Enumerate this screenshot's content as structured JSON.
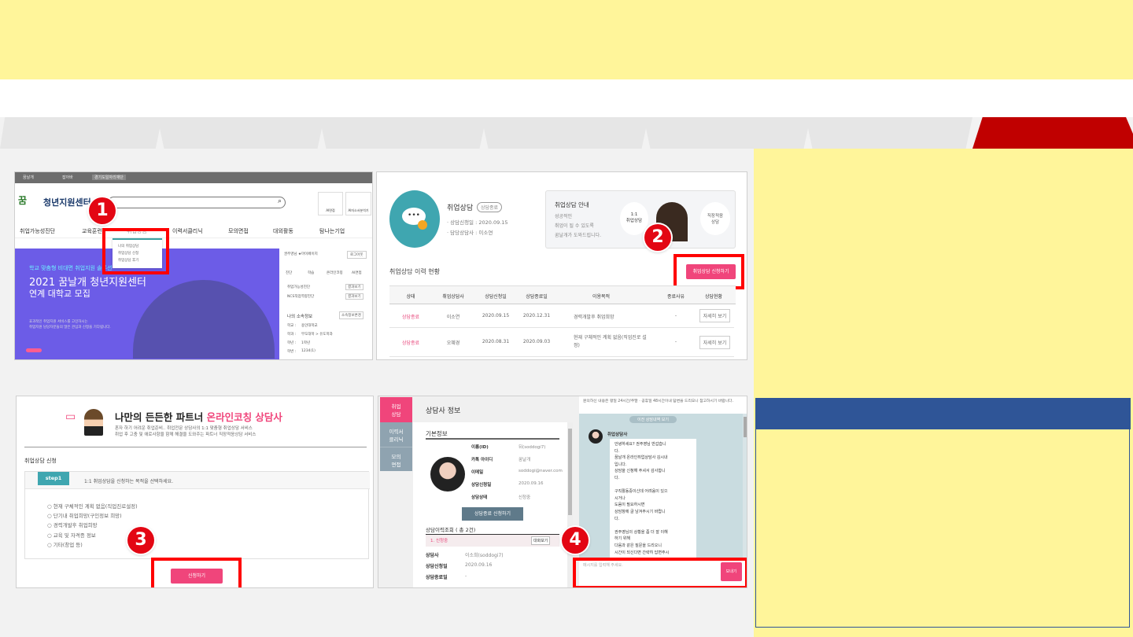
{
  "colors": {
    "accent_red": "#c00000",
    "highlight_yellow": "#fff59a",
    "panel_blue": "#2f5597",
    "pink": "#f0457b",
    "teal": "#3fa6b0"
  },
  "tabs": [
    {
      "label": ""
    },
    {
      "label": ""
    },
    {
      "label": ""
    },
    {
      "label": ""
    },
    {
      "label": ""
    },
    {
      "label": ""
    },
    {
      "label": "",
      "active": true
    }
  ],
  "badges": [
    "1",
    "2",
    "3",
    "4"
  ],
  "shot1": {
    "topbar": [
      "꿈날개",
      "잡아바",
      "경기도일자리재단"
    ],
    "logo": "청년지원센터",
    "search_placeholder": "",
    "quick": [
      "AI면접",
      "AI자소서분석기"
    ],
    "nav": [
      "취업가능성진단",
      "교육훈련",
      "취업상담",
      "이력서클리닉",
      "모의면접",
      "대외활동",
      "탐나는기업"
    ],
    "dropdown": [
      "나의 취업상담",
      "취업상담 신청",
      "취업상담 후기"
    ],
    "banner": {
      "kicker": "학교 맞춤형 비대면 취업지원 솔루션",
      "title1": "2021 꿈날개 청년지원센터",
      "title2": "연계 대학교 모집",
      "desc1": "효과적인 취업지원 서비스를 고민하시는",
      "desc2": "취업지원 담당자분들의 많은 관심과 신청을 기다립니다."
    },
    "side": {
      "user": "권주영님 ★마이페이지",
      "logout": "로그아웃",
      "icons": [
        "진단",
        "학습",
        "온라인코칭",
        "AI면접"
      ],
      "items": [
        {
          "label": "취업가능성진단",
          "btn": "결과보기"
        },
        {
          "label": "NCS직업역량진단",
          "btn": "결과보기"
        }
      ],
      "info_title": "나의 소속정보",
      "info_btn": "소속정보변경",
      "info": [
        {
          "k": "학교 :",
          "v": "용인대학교"
        },
        {
          "k": "학과 :",
          "v": "무도대학 > 유도학과"
        },
        {
          "k": "학년 :",
          "v": "1학년"
        },
        {
          "k": "학번 :",
          "v": "1234(1)"
        }
      ]
    }
  },
  "shot2": {
    "title": "취업상담",
    "status": "상담종료",
    "apply_date": "· 상담신청일 : 2020.09.15",
    "counselor": "· 담당상담사 : 이소연",
    "guide": {
      "title": "취업상담 안내",
      "lines": [
        "성공적인",
        "취업이 될 수 있도록",
        "꿈날개가 도와드립니다."
      ],
      "left_bubble": "1:1\n취업상담",
      "right_bubble": "직장적응\n상담"
    },
    "history_title": "취업상담 이력 현황",
    "apply_button": "취업상담 신청하기",
    "columns": [
      "상태",
      "취업상담사",
      "상담신청일",
      "상담종료일",
      "이용목적",
      "종료사유",
      "상담현황"
    ],
    "rows": [
      {
        "status": "상담종료",
        "counselor": "이소연",
        "start": "2020.09.15",
        "end": "2020.12.31",
        "purpose": "경력개발후 취업희망",
        "reason": "-",
        "action": "자세히 보기"
      },
      {
        "status": "상담종료",
        "counselor": "오혜경",
        "start": "2020.08.31",
        "end": "2020.09.03",
        "purpose": "현재 구체적인 계획 없음(직업진로 설정)",
        "reason": "-",
        "action": "자세히 보기"
      }
    ]
  },
  "shot3": {
    "title_black": "나만의 든든한 파트너 ",
    "title_pink": "온라인코칭 상담사",
    "sub1": "혼자 하기 어려운 취업준비.. 취업전문 상담사의 1:1 맞춤형 취업상담 서비스",
    "sub2": "취업 후 고충 및 애로사항을 함께 해결을 도와주는 파트너 직장적응상담 서비스",
    "section": "취업상담 신청",
    "step": "step1",
    "step_text": "1:1 취업상담을 신청하는 목적을 선택하세요.",
    "options": [
      "현재 구체적인 계획 없음(직업진로설정)",
      "단기내 취업희망(구인정보 희망)",
      "경력개발후 취업희망",
      "교육 및 자격증 정보",
      "기타(창업 등)"
    ],
    "submit": "신청하기"
  },
  "shot4": {
    "side_tabs": [
      "취업\n상담",
      "이력서\n클리닉",
      "모의\n면접"
    ],
    "header": "상담사 정보",
    "basic": "기본정보",
    "fields": [
      {
        "k": "이름(ID)",
        "v": "뒤(soddogi7)"
      },
      {
        "k": "카톡 아이디",
        "v": "꿈날개"
      },
      {
        "k": "이메일",
        "v": "soddogi@naver.com"
      },
      {
        "k": "상담신청일",
        "v": "2020.09.16"
      },
      {
        "k": "상담상태",
        "v": "신청중"
      }
    ],
    "end_button": "상담종료 신청하기",
    "history_title": "상담이력조회 ( 총 2건)",
    "history_item": "1. 신청중",
    "history_btn": "대화보기",
    "history_fields": [
      {
        "k": "상담사",
        "v": "이소희(soddogi7)"
      },
      {
        "k": "상담신청일",
        "v": "2020.09.16"
      },
      {
        "k": "상담종료일",
        "v": "-"
      }
    ],
    "notice": "문의하신 내용은 평일 24시간/주말 · 공휴일 48시간이내 답변을 드리오니 참고하시기 바랍니다.",
    "prev_button": "이전 상담내역 보기",
    "sender": "취업상담사",
    "message": [
      "안녕하세요? 권주영님 반갑습니",
      "다.",
      "꿈날개 온라인취업상담사 김시내",
      "입니다.",
      "상담을 신청해 주셔서 감사합니",
      "다.",
      "",
      "구직활동중이신데 어려움이 있으",
      "시거나",
      "도움이 필요하시면",
      "상담창에 글 남겨주시기 바랍니",
      "다.",
      "",
      "권주영님의 상황을 좀 더 잘 이해",
      "하기 위해",
      "다음과 같은 질문을 드리오니",
      "시간이 되신다면 간략히 답변주시"
    ],
    "input_placeholder": "메시지를 입력해 주세요.",
    "send": "보내기"
  }
}
